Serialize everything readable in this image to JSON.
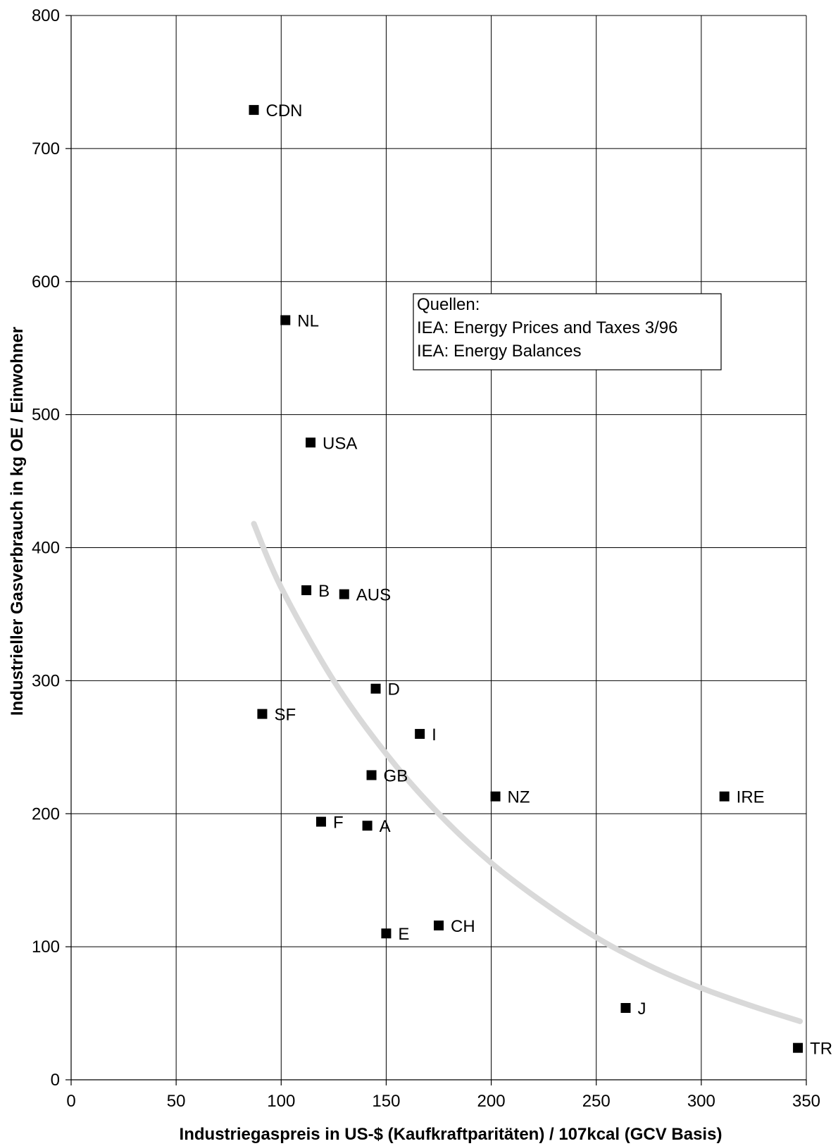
{
  "chart_data": {
    "type": "scatter",
    "xlabel": "Industriegaspreis in US-$ (Kaufkraftparitäten) / 107kcal (GCV Basis)",
    "ylabel": "Industrieller Gasverbrauch in kg OE / Einwohner",
    "xlim": [
      0,
      350
    ],
    "ylim": [
      0,
      800
    ],
    "xticks": [
      0,
      50,
      100,
      150,
      200,
      250,
      300,
      350
    ],
    "yticks": [
      0,
      100,
      200,
      300,
      400,
      500,
      600,
      700,
      800
    ],
    "grid": true,
    "points": [
      {
        "label": "CDN",
        "x": 87,
        "y": 729
      },
      {
        "label": "NL",
        "x": 102,
        "y": 571
      },
      {
        "label": "USA",
        "x": 114,
        "y": 479
      },
      {
        "label": "B",
        "x": 112,
        "y": 368
      },
      {
        "label": "AUS",
        "x": 130,
        "y": 365
      },
      {
        "label": "D",
        "x": 145,
        "y": 294
      },
      {
        "label": "SF",
        "x": 91,
        "y": 275
      },
      {
        "label": "I",
        "x": 166,
        "y": 260
      },
      {
        "label": "GB",
        "x": 143,
        "y": 229
      },
      {
        "label": "NZ",
        "x": 202,
        "y": 213
      },
      {
        "label": "IRE",
        "x": 311,
        "y": 213
      },
      {
        "label": "F",
        "x": 119,
        "y": 194
      },
      {
        "label": "A",
        "x": 141,
        "y": 191
      },
      {
        "label": "CH",
        "x": 175,
        "y": 116
      },
      {
        "label": "E",
        "x": 150,
        "y": 110
      },
      {
        "label": "J",
        "x": 264,
        "y": 54
      },
      {
        "label": "TR",
        "x": 346,
        "y": 24
      }
    ],
    "trend_curve": [
      {
        "x": 87,
        "y": 418
      },
      {
        "x": 100,
        "y": 370
      },
      {
        "x": 125,
        "y": 300
      },
      {
        "x": 150,
        "y": 245
      },
      {
        "x": 175,
        "y": 200
      },
      {
        "x": 200,
        "y": 163
      },
      {
        "x": 225,
        "y": 133
      },
      {
        "x": 250,
        "y": 107
      },
      {
        "x": 275,
        "y": 86
      },
      {
        "x": 300,
        "y": 69
      },
      {
        "x": 325,
        "y": 55
      },
      {
        "x": 347,
        "y": 44
      }
    ],
    "annotation": {
      "lines": [
        "Quellen:",
        "IEA: Energy Prices and Taxes 3/96",
        "IEA: Energy Balances"
      ]
    },
    "colors": {
      "marker": "#000000",
      "grid": "#000000",
      "trend": "#d9d9d9"
    }
  }
}
